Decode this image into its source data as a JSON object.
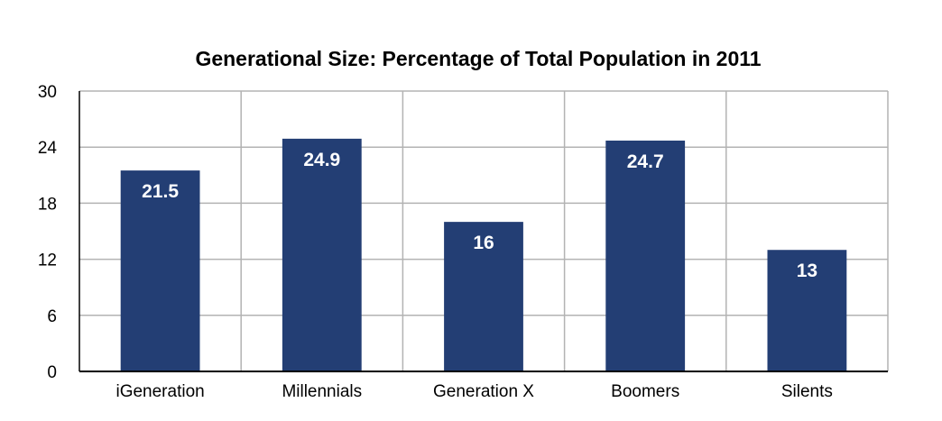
{
  "chart_data": {
    "type": "bar",
    "title": "Generational Size: Percentage of Total Population in 2011",
    "xlabel": "",
    "ylabel": "",
    "categories": [
      "iGeneration",
      "Millennials",
      "Generation X",
      "Boomers",
      "Silents"
    ],
    "values": [
      21.5,
      24.9,
      16,
      24.7,
      13
    ],
    "data_labels": [
      "21.5",
      "24.9",
      "16",
      "24.7",
      "13"
    ],
    "ylim": [
      0,
      30
    ],
    "yticks": [
      0,
      6,
      12,
      18,
      24,
      30
    ],
    "ytick_labels": [
      "0",
      "6",
      "12",
      "18",
      "24",
      "30"
    ],
    "grid": true,
    "legend": "none",
    "colors": {
      "bar": "#233e74",
      "grid": "#b3b3b3",
      "axis": "#000000",
      "data_label": "#ffffff"
    }
  }
}
